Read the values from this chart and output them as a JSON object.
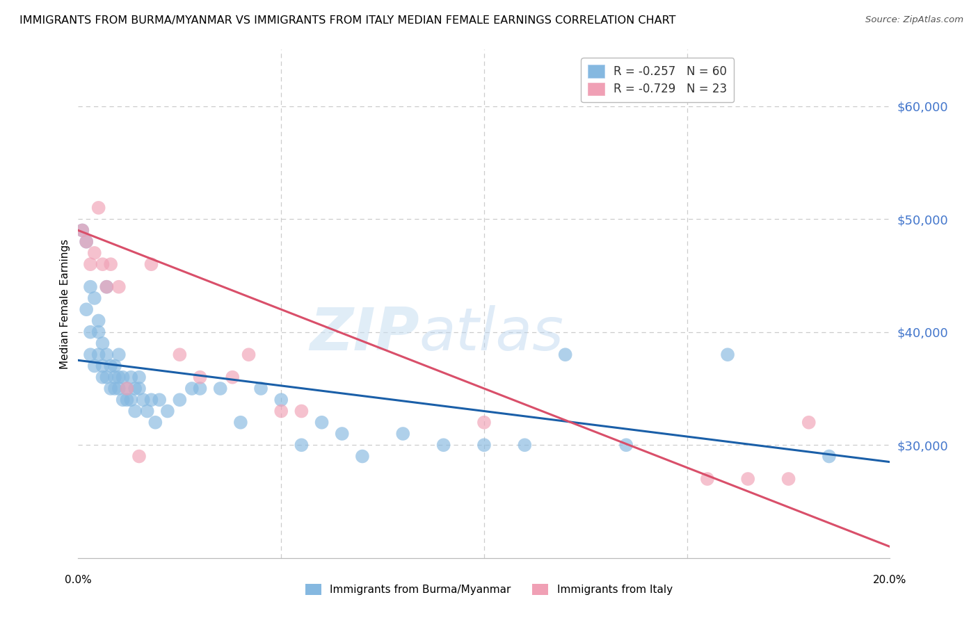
{
  "title": "IMMIGRANTS FROM BURMA/MYANMAR VS IMMIGRANTS FROM ITALY MEDIAN FEMALE EARNINGS CORRELATION CHART",
  "source": "Source: ZipAtlas.com",
  "ylabel": "Median Female Earnings",
  "right_ytick_values": [
    60000,
    50000,
    40000,
    30000
  ],
  "ylim": [
    20000,
    65000
  ],
  "xlim": [
    0.0,
    0.2
  ],
  "watermark": "ZIPatlas",
  "blue_scatter_x": [
    0.001,
    0.002,
    0.002,
    0.003,
    0.003,
    0.003,
    0.004,
    0.004,
    0.005,
    0.005,
    0.005,
    0.006,
    0.006,
    0.006,
    0.007,
    0.007,
    0.007,
    0.008,
    0.008,
    0.009,
    0.009,
    0.009,
    0.01,
    0.01,
    0.01,
    0.011,
    0.011,
    0.012,
    0.012,
    0.013,
    0.013,
    0.014,
    0.014,
    0.015,
    0.015,
    0.016,
    0.017,
    0.018,
    0.019,
    0.02,
    0.022,
    0.025,
    0.028,
    0.03,
    0.035,
    0.04,
    0.045,
    0.05,
    0.055,
    0.06,
    0.065,
    0.07,
    0.08,
    0.09,
    0.1,
    0.11,
    0.12,
    0.135,
    0.16,
    0.185
  ],
  "blue_scatter_y": [
    49000,
    48000,
    42000,
    44000,
    40000,
    38000,
    43000,
    37000,
    41000,
    40000,
    38000,
    39000,
    37000,
    36000,
    44000,
    38000,
    36000,
    37000,
    35000,
    37000,
    36000,
    35000,
    38000,
    36000,
    35000,
    36000,
    34000,
    35000,
    34000,
    36000,
    34000,
    35000,
    33000,
    36000,
    35000,
    34000,
    33000,
    34000,
    32000,
    34000,
    33000,
    34000,
    35000,
    35000,
    35000,
    32000,
    35000,
    34000,
    30000,
    32000,
    31000,
    29000,
    31000,
    30000,
    30000,
    30000,
    38000,
    30000,
    38000,
    29000
  ],
  "pink_scatter_x": [
    0.001,
    0.002,
    0.003,
    0.004,
    0.005,
    0.006,
    0.007,
    0.008,
    0.01,
    0.012,
    0.015,
    0.018,
    0.025,
    0.03,
    0.038,
    0.042,
    0.05,
    0.055,
    0.1,
    0.155,
    0.165,
    0.175,
    0.18
  ],
  "pink_scatter_y": [
    49000,
    48000,
    46000,
    47000,
    51000,
    46000,
    44000,
    46000,
    44000,
    35000,
    29000,
    46000,
    38000,
    36000,
    36000,
    38000,
    33000,
    33000,
    32000,
    27000,
    27000,
    27000,
    32000
  ],
  "blue_line_x": [
    0.0,
    0.2
  ],
  "blue_line_y": [
    37500,
    28500
  ],
  "pink_line_x": [
    0.0,
    0.2
  ],
  "pink_line_y": [
    49000,
    21000
  ],
  "blue_color": "#85b8e0",
  "pink_color": "#f0a0b5",
  "blue_line_color": "#1a5fa8",
  "pink_line_color": "#d94f6a",
  "background_color": "#ffffff",
  "grid_color": "#cccccc",
  "right_axis_color": "#4477cc",
  "title_fontsize": 11.5,
  "source_fontsize": 9.5,
  "legend_blue_color": "#85b8e0",
  "legend_pink_color": "#f0a0b5",
  "legend_text_color_r": "#cc4466",
  "legend_text_color_n": "#2266cc"
}
